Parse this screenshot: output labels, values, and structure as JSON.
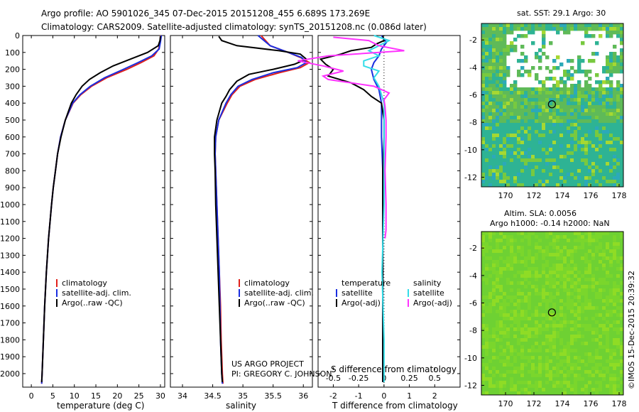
{
  "header": {
    "title_line1": "Argo profile: AO 5901026_345 07-Dec-2015 20151208_455 6.689S 173.269E",
    "title_line2": "Climatology: CARS2009. Satellite-adjusted climatology: synTS_20151208.nc (0.086d later)"
  },
  "colors": {
    "climatology": "#e0201a",
    "satellite": "#1a2ee0",
    "argo": "#000000",
    "sat_salinity": "#33dde8",
    "argo_salinity_diff": "#ff33ff"
  },
  "chart_data": [
    {
      "type": "line",
      "name": "temperature",
      "xlabel": "temperature (deg C)",
      "ylabel": "",
      "xlim": [
        -2,
        31
      ],
      "ylim": [
        2080,
        0
      ],
      "xticks": [
        0,
        5,
        10,
        15,
        20,
        25,
        30
      ],
      "yticks": [
        0,
        100,
        200,
        300,
        400,
        500,
        600,
        700,
        800,
        900,
        1000,
        1100,
        1200,
        1300,
        1400,
        1500,
        1600,
        1700,
        1800,
        1900,
        2000
      ],
      "series": [
        {
          "name": "climatology",
          "color": "#e0201a",
          "depth": [
            0,
            40,
            80,
            120,
            160,
            200,
            250,
            300,
            350,
            400,
            500,
            600,
            700,
            800,
            900,
            1000,
            1200,
            1400,
            1600,
            1800,
            2000,
            2060
          ],
          "values": [
            30.1,
            29.9,
            29.6,
            28.5,
            25.5,
            22.2,
            17.5,
            14.0,
            11.5,
            9.7,
            7.9,
            6.8,
            6.1,
            5.6,
            5.1,
            4.7,
            4.0,
            3.5,
            3.1,
            2.8,
            2.5,
            2.4
          ]
        },
        {
          "name": "satellite-adj. clim.",
          "color": "#1a2ee0",
          "depth": [
            0,
            40,
            80,
            120,
            160,
            200,
            250,
            300,
            350,
            400,
            500,
            600,
            700,
            800,
            900,
            1000,
            1200,
            1400,
            1600,
            1800,
            2000,
            2060
          ],
          "values": [
            30.2,
            30.0,
            29.7,
            28.0,
            24.8,
            21.4,
            17.0,
            13.7,
            11.3,
            9.6,
            7.9,
            6.8,
            6.1,
            5.6,
            5.1,
            4.7,
            4.0,
            3.5,
            3.1,
            2.8,
            2.5,
            2.4
          ]
        },
        {
          "name": "Argo(..raw -QC)",
          "color": "#000000",
          "depth": [
            5,
            30,
            60,
            100,
            140,
            180,
            220,
            260,
            300,
            350,
            400,
            500,
            600,
            700,
            800,
            900,
            1000,
            1200,
            1400,
            1600,
            1800,
            2000,
            2050
          ],
          "values": [
            30.0,
            29.9,
            29.5,
            27.0,
            23.0,
            19.0,
            16.0,
            13.5,
            11.8,
            10.4,
            9.3,
            7.9,
            6.9,
            6.1,
            5.6,
            5.1,
            4.7,
            4.0,
            3.5,
            3.1,
            2.8,
            2.5,
            2.4
          ]
        }
      ],
      "legend": [
        "climatology",
        "satellite-adj. clim.",
        "Argo(..raw -QC)"
      ]
    },
    {
      "type": "line",
      "name": "salinity",
      "xlabel": "salinity",
      "xlim": [
        33.8,
        36.15
      ],
      "ylim": [
        2080,
        0
      ],
      "xticks": [
        34,
        34.5,
        35,
        35.5,
        36
      ],
      "series": [
        {
          "name": "climatology",
          "color": "#e0201a",
          "depth": [
            0,
            60,
            100,
            130,
            160,
            190,
            220,
            260,
            300,
            350,
            400,
            500,
            600,
            700,
            800,
            1000,
            1200,
            1400,
            1600,
            1800,
            2000,
            2060
          ],
          "values": [
            35.3,
            35.45,
            35.75,
            35.95,
            36.1,
            35.95,
            35.6,
            35.2,
            34.95,
            34.82,
            34.74,
            34.6,
            34.55,
            34.54,
            34.55,
            34.57,
            34.59,
            34.61,
            34.63,
            34.64,
            34.66,
            34.67
          ]
        },
        {
          "name": "satellite-adj. clim.",
          "color": "#1a2ee0",
          "depth": [
            0,
            60,
            100,
            130,
            160,
            190,
            220,
            260,
            300,
            350,
            400,
            500,
            600,
            700,
            800,
            1000,
            1200,
            1400,
            1600,
            1800,
            2000,
            2060
          ],
          "values": [
            35.25,
            35.45,
            35.75,
            35.97,
            36.05,
            35.9,
            35.5,
            35.15,
            34.92,
            34.8,
            34.72,
            34.6,
            34.55,
            34.54,
            34.55,
            34.57,
            34.59,
            34.61,
            34.62,
            34.63,
            34.65,
            34.66
          ]
        },
        {
          "name": "Argo(..raw -QC)",
          "color": "#000000",
          "depth": [
            5,
            30,
            60,
            90,
            110,
            140,
            170,
            200,
            230,
            270,
            320,
            360,
            400,
            500,
            600,
            700,
            800,
            1000,
            1200,
            1400,
            1600,
            1800,
            2000,
            2050
          ],
          "values": [
            34.6,
            34.65,
            34.9,
            35.6,
            35.95,
            36.05,
            35.85,
            35.5,
            35.1,
            34.9,
            34.78,
            34.72,
            34.65,
            34.57,
            34.53,
            34.53,
            34.54,
            34.55,
            34.57,
            34.59,
            34.61,
            34.63,
            34.65,
            34.66
          ]
        }
      ],
      "legend": [
        "climatology",
        "satellite-adj. clim.",
        "Argo(..raw -QC)"
      ],
      "annotation_line1": "US ARGO PROJECT",
      "annotation_line2": "PI: GREGORY C. JOHNSON"
    },
    {
      "type": "line",
      "name": "difference",
      "xlabel": "T difference from climatology",
      "xlabel_top": "S difference from climatology",
      "xlim": [
        -2.6,
        3
      ],
      "ylim": [
        2080,
        0
      ],
      "xticks_T": [
        -2,
        -1,
        0,
        1,
        2
      ],
      "xticks_S": [
        -0.5,
        -0.25,
        0,
        0.25,
        0.5
      ],
      "legend_left_title": "temperature",
      "legend_right_title": "salinity",
      "legend_left": [
        "satellite",
        "Argo(-adj)"
      ],
      "legend_right": [
        "satellite",
        "Argo(-adj)"
      ],
      "series": [
        {
          "name": "T satellite",
          "color": "#1a2ee0",
          "depth": [
            0,
            40,
            80,
            120,
            160,
            200,
            260,
            320,
            400,
            600,
            800,
            1000,
            1400,
            1800,
            2050
          ],
          "values": [
            -0.1,
            0.1,
            -0.1,
            -0.2,
            -0.4,
            -0.5,
            -0.4,
            -0.2,
            -0.1,
            -0.1,
            -0.05,
            -0.05,
            -0.05,
            -0.05,
            -0.05
          ]
        },
        {
          "name": "T Argo(-adj)",
          "color": "#000000",
          "depth": [
            0,
            30,
            50,
            70,
            90,
            110,
            140,
            170,
            200,
            240,
            280,
            320,
            360,
            400,
            500,
            600,
            800,
            1000,
            1400,
            1800,
            2050
          ],
          "values": [
            -0.05,
            0.0,
            -0.3,
            -0.5,
            -1.3,
            -1.7,
            -2.5,
            -2.3,
            -2.0,
            -2.2,
            -1.3,
            -0.8,
            -0.5,
            -0.1,
            0.0,
            0.0,
            -0.05,
            -0.05,
            -0.05,
            -0.05,
            -0.05
          ]
        },
        {
          "name": "S satellite",
          "color": "#33dde8",
          "depth": [
            0,
            30,
            60,
            90,
            120,
            150,
            180,
            210,
            250,
            300,
            400,
            600,
            800,
            1000,
            1400,
            1800,
            2050
          ],
          "values": [
            -0.1,
            0.05,
            -0.05,
            -0.15,
            -0.05,
            -0.2,
            -0.2,
            -0.05,
            -0.1,
            -0.05,
            0.0,
            0.0,
            0.0,
            0.0,
            -0.02,
            0.0,
            0.0
          ]
        },
        {
          "name": "S Argo(-adj)",
          "color": "#ff33ff",
          "depth": [
            10,
            30,
            60,
            90,
            120,
            150,
            180,
            210,
            240,
            260,
            300,
            340,
            380,
            420,
            500,
            600,
            800,
            1000,
            1150,
            1200
          ],
          "values": [
            -0.5,
            -0.15,
            -0.05,
            0.2,
            -0.55,
            -0.85,
            -0.6,
            -0.4,
            -0.6,
            -0.55,
            -0.1,
            0.05,
            0.0,
            0.01,
            0.02,
            0.02,
            0.01,
            0.02,
            0.02,
            0.01
          ]
        }
      ]
    }
  ],
  "maps": [
    {
      "name": "sst-map",
      "title": "sat. SST: 29.1 Argo: 30",
      "xticks": [
        170,
        172,
        174,
        176,
        178
      ],
      "yticks": [
        -2,
        -4,
        -6,
        -8,
        -10,
        -12
      ],
      "xlim": [
        168.3,
        178.3
      ],
      "ylim": [
        -12.7,
        -0.8
      ],
      "marker": {
        "lon": 173.269,
        "lat": -6.689
      }
    },
    {
      "name": "sla-map",
      "title_line1": "Altim. SLA: 0.0056",
      "title_line2": "Argo h1000: -0.14 h2000: NaN",
      "xticks": [
        170,
        172,
        174,
        176,
        178
      ],
      "yticks": [
        -2,
        -4,
        -6,
        -8,
        -10,
        -12
      ],
      "xlim": [
        168.3,
        178.3
      ],
      "ylim": [
        -12.7,
        -0.8
      ],
      "marker": {
        "lon": 173.269,
        "lat": -6.689
      }
    }
  ],
  "credit": "©IMOS 15-Dec-2015 20:39:32"
}
